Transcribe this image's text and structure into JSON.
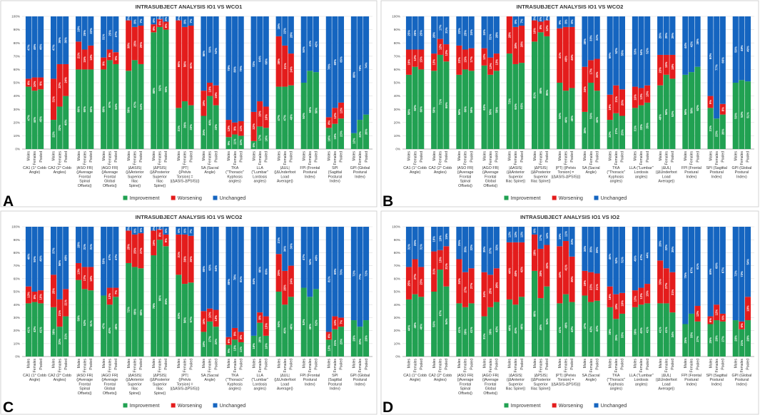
{
  "colors": {
    "improvement": "#21a152",
    "worsening": "#e41c1c",
    "unchanged": "#1565c0"
  },
  "legend": {
    "improvement": "Improvement",
    "worsening": "Worsening",
    "unchanged": "Unchanged"
  },
  "y_ticks": [
    "0%",
    "10%",
    "20%",
    "30%",
    "40%",
    "50%",
    "60%",
    "70%",
    "80%",
    "90%",
    "100%"
  ],
  "subgroups": [
    "Males",
    "Females",
    "Pooled"
  ],
  "groups": [
    "CA1 (1° Cobb Angle)",
    "CA2 (2° Cobb Angles)",
    "|ASO FR| (|Average Frontal Spinal Offsets|)",
    "|AGO FR| (|Average Frontal Global Offsets|)",
    "|ΔASIS| (|ΔAnterior Superior Iliac Spine|)",
    "|ΔPSIS| (|ΔPosterior Superior Iliac Spine|)",
    "|PT| (|Pelvis Torsion| = |(ΔASIS-ΔPSIS)|)",
    "SA (Sacral Angle)",
    "TKA (\"Thoracic\" Kyphosis angles)",
    "LLA (\"Lumbar\" Lordosis angles)",
    "|ΔUL| (|ΔUnderfoot Load Average|)",
    "FPI (Frontal Postural Index)",
    "SPI (Sagittal Postural Index)",
    "GPI (Global Postural Index)"
  ],
  "chart_data": [
    {
      "type": "bar",
      "stacking": "percent",
      "panel": "A",
      "title": "INTRASUBJECT ANALYSIS IO1 VS WCO1",
      "categories": [
        "Males",
        "Females",
        "Pooled"
      ],
      "series_order": [
        "Improvement",
        "Worsening",
        "Unchanged"
      ],
      "ylim": [
        0,
        100
      ],
      "ylabel": "%",
      "values": [
        [
          [
            47,
            6,
            47
          ],
          [
            44,
            10,
            46
          ],
          [
            45,
            9,
            46
          ]
        ],
        [
          [
            22,
            31,
            47
          ],
          [
            32,
            32,
            36
          ],
          [
            40,
            24,
            36
          ]
        ],
        [
          [
            60,
            21,
            19
          ],
          [
            60,
            15,
            25
          ],
          [
            60,
            18,
            22
          ]
        ],
        [
          [
            60,
            9,
            31
          ],
          [
            67,
            8,
            25
          ],
          [
            64,
            9,
            27
          ]
        ],
        [
          [
            59,
            38,
            3
          ],
          [
            67,
            25,
            8
          ],
          [
            64,
            29,
            7
          ]
        ],
        [
          [
            88,
            6,
            6
          ],
          [
            92,
            6,
            2
          ],
          [
            90,
            6,
            4
          ]
        ],
        [
          [
            31,
            66,
            3
          ],
          [
            36,
            56,
            8
          ],
          [
            33,
            60,
            7
          ]
        ],
        [
          [
            25,
            19,
            56
          ],
          [
            40,
            10,
            50
          ],
          [
            33,
            15,
            52
          ]
        ],
        [
          [
            9,
            13,
            78
          ],
          [
            11,
            9,
            80
          ],
          [
            10,
            11,
            79
          ]
        ],
        [
          [
            6,
            22,
            72
          ],
          [
            17,
            19,
            64
          ],
          [
            16,
            16,
            68
          ]
        ],
        [
          [
            47,
            38,
            15
          ],
          [
            47,
            31,
            22
          ],
          [
            48,
            24,
            28
          ]
        ],
        [
          [
            50,
            0,
            50
          ],
          [
            59,
            0,
            41
          ],
          [
            58,
            0,
            42
          ]
        ],
        [
          [
            16,
            8,
            76
          ],
          [
            19,
            12,
            69
          ],
          [
            23,
            12,
            65
          ]
        ],
        [
          [
            12,
            0,
            88
          ],
          [
            22,
            0,
            78
          ],
          [
            26,
            0,
            74
          ]
        ]
      ]
    },
    {
      "type": "bar",
      "stacking": "percent",
      "panel": "B",
      "title": "INTRASUBJECT ANALYSIS IO1 VS WCO2",
      "categories": [
        "Males",
        "Females",
        "Pooled"
      ],
      "series_order": [
        "Improvement",
        "Worsening",
        "Unchanged"
      ],
      "ylim": [
        0,
        100
      ],
      "ylabel": "%",
      "values": [
        [
          [
            56,
            19,
            25
          ],
          [
            62,
            13,
            25
          ],
          [
            60,
            15,
            25
          ]
        ],
        [
          [
            59,
            13,
            28
          ],
          [
            71,
            12,
            17
          ],
          [
            66,
            13,
            21
          ]
        ],
        [
          [
            56,
            22,
            22
          ],
          [
            60,
            15,
            25
          ],
          [
            59,
            17,
            24
          ]
        ],
        [
          [
            63,
            13,
            24
          ],
          [
            56,
            13,
            31
          ],
          [
            59,
            13,
            28
          ]
        ],
        [
          [
            72,
            28,
            0
          ],
          [
            64,
            28,
            8
          ],
          [
            65,
            28,
            7
          ]
        ],
        [
          [
            81,
            16,
            3
          ],
          [
            88,
            8,
            4
          ],
          [
            85,
            12,
            3
          ]
        ],
        [
          [
            50,
            41,
            9
          ],
          [
            44,
            48,
            8
          ],
          [
            46,
            46,
            8
          ]
        ],
        [
          [
            28,
            34,
            38
          ],
          [
            50,
            17,
            33
          ],
          [
            44,
            24,
            32
          ]
        ],
        [
          [
            22,
            19,
            59
          ],
          [
            27,
            21,
            52
          ],
          [
            25,
            20,
            55
          ]
        ],
        [
          [
            31,
            16,
            53
          ],
          [
            33,
            13,
            54
          ],
          [
            35,
            13,
            52
          ]
        ],
        [
          [
            48,
            23,
            29
          ],
          [
            56,
            15,
            29
          ],
          [
            53,
            18,
            29
          ]
        ],
        [
          [
            56,
            0,
            44
          ],
          [
            58,
            0,
            42
          ],
          [
            62,
            0,
            38
          ]
        ],
        [
          [
            31,
            9,
            60
          ],
          [
            23,
            0,
            77
          ],
          [
            26,
            8,
            66
          ]
        ],
        [
          [
            50,
            0,
            50
          ],
          [
            52,
            0,
            48
          ],
          [
            51,
            0,
            49
          ]
        ]
      ]
    },
    {
      "type": "bar",
      "stacking": "percent",
      "panel": "C",
      "title": "INTRASUBJECT ANALYSIS IO1 VS WCO2",
      "categories": [
        "Males",
        "Females",
        "Pooled"
      ],
      "series_order": [
        "Improvement",
        "Worsening",
        "Unchanged"
      ],
      "ylim": [
        0,
        100
      ],
      "ylabel": "%",
      "values": [
        [
          [
            41,
            13,
            46
          ],
          [
            42,
            8,
            50
          ],
          [
            41,
            10,
            49
          ]
        ],
        [
          [
            38,
            25,
            37
          ],
          [
            23,
            21,
            56
          ],
          [
            31,
            21,
            48
          ]
        ],
        [
          [
            59,
            13,
            28
          ],
          [
            52,
            17,
            31
          ],
          [
            51,
            18,
            31
          ]
        ],
        [
          [
            47,
            0,
            53
          ],
          [
            40,
            13,
            47
          ],
          [
            46,
            7,
            47
          ]
        ],
        [
          [
            72,
            25,
            3
          ],
          [
            69,
            25,
            6
          ],
          [
            68,
            27,
            5
          ]
        ],
        [
          [
            78,
            19,
            3
          ],
          [
            90,
            8,
            2
          ],
          [
            85,
            9,
            6
          ]
        ],
        [
          [
            63,
            31,
            6
          ],
          [
            56,
            38,
            6
          ],
          [
            57,
            36,
            7
          ]
        ],
        [
          [
            19,
            16,
            65
          ],
          [
            27,
            10,
            63
          ],
          [
            23,
            13,
            64
          ]
        ],
        [
          [
            9,
            6,
            85
          ],
          [
            13,
            9,
            78
          ],
          [
            11,
            8,
            81
          ]
        ],
        [
          [
            16,
            0,
            84
          ],
          [
            26,
            8,
            66
          ],
          [
            16,
            15,
            69
          ]
        ],
        [
          [
            50,
            29,
            21
          ],
          [
            40,
            26,
            34
          ],
          [
            46,
            24,
            30
          ]
        ],
        [
          [
            53,
            0,
            47
          ],
          [
            46,
            0,
            54
          ],
          [
            52,
            0,
            48
          ]
        ],
        [
          [
            13,
            6,
            81
          ],
          [
            21,
            10,
            69
          ],
          [
            23,
            7,
            70
          ]
        ],
        [
          [
            28,
            0,
            72
          ],
          [
            23,
            0,
            77
          ],
          [
            28,
            0,
            72
          ]
        ]
      ]
    },
    {
      "type": "bar",
      "stacking": "percent",
      "panel": "D",
      "title": "INTRASUBJECT ANALYSIS IO1 VS IO2",
      "categories": [
        "Males",
        "Females",
        "Pooled"
      ],
      "series_order": [
        "Improvement",
        "Worsening",
        "Unchanged"
      ],
      "ylim": [
        0,
        100
      ],
      "ylabel": "%",
      "values": [
        [
          [
            44,
            25,
            31
          ],
          [
            48,
            27,
            25
          ],
          [
            46,
            23,
            31
          ]
        ],
        [
          [
            50,
            31,
            19
          ],
          [
            67,
            15,
            18
          ],
          [
            54,
            31,
            15
          ]
        ],
        [
          [
            41,
            34,
            25
          ],
          [
            38,
            27,
            35
          ],
          [
            41,
            27,
            32
          ]
        ],
        [
          [
            31,
            34,
            35
          ],
          [
            38,
            25,
            37
          ],
          [
            42,
            26,
            32
          ]
        ],
        [
          [
            44,
            44,
            12
          ],
          [
            40,
            48,
            12
          ],
          [
            46,
            42,
            12
          ]
        ],
        [
          [
            66,
            28,
            6
          ],
          [
            45,
            38,
            17
          ],
          [
            54,
            32,
            14
          ]
        ],
        [
          [
            41,
            44,
            15
          ],
          [
            48,
            41,
            11
          ],
          [
            42,
            35,
            23
          ]
        ],
        [
          [
            47,
            19,
            34
          ],
          [
            42,
            23,
            35
          ],
          [
            43,
            21,
            36
          ]
        ],
        [
          [
            38,
            16,
            46
          ],
          [
            29,
            19,
            52
          ],
          [
            33,
            16,
            51
          ]
        ],
        [
          [
            38,
            13,
            49
          ],
          [
            40,
            13,
            47
          ],
          [
            41,
            15,
            44
          ]
        ],
        [
          [
            41,
            33,
            26
          ],
          [
            41,
            27,
            32
          ],
          [
            34,
            31,
            35
          ]
        ],
        [
          [
            25,
            0,
            75
          ],
          [
            33,
            0,
            67
          ],
          [
            27,
            12,
            61
          ]
        ],
        [
          [
            25,
            6,
            69
          ],
          [
            28,
            12,
            60
          ],
          [
            27,
            6,
            67
          ]
        ],
        [
          [
            28,
            0,
            72
          ],
          [
            21,
            6,
            73
          ],
          [
            28,
            18,
            54
          ]
        ]
      ]
    }
  ],
  "panel_labels": [
    "A",
    "B",
    "C",
    "D"
  ]
}
